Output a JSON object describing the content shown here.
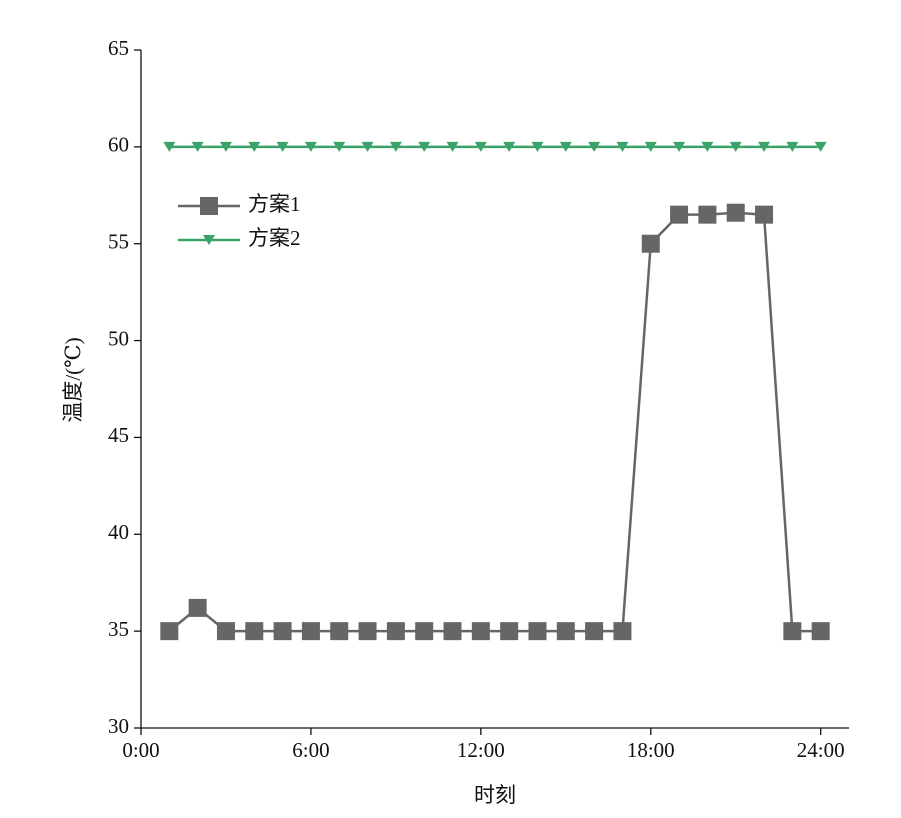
{
  "chart_data": {
    "type": "line",
    "xlabel": "时刻",
    "ylabel": "温度/(℃)",
    "x": [
      1,
      2,
      3,
      4,
      5,
      6,
      7,
      8,
      9,
      10,
      11,
      12,
      13,
      14,
      15,
      16,
      17,
      18,
      19,
      20,
      21,
      22,
      23,
      24
    ],
    "series": [
      {
        "name": "方案1",
        "color": "#666666",
        "marker": "square",
        "values": [
          35,
          36.2,
          35,
          35,
          35,
          35,
          35,
          35,
          35,
          35,
          35,
          35,
          35,
          35,
          35,
          35,
          35,
          55,
          56.5,
          56.5,
          56.6,
          56.5,
          35,
          35
        ]
      },
      {
        "name": "方案2",
        "color": "#3aa36a",
        "marker": "triangle-down",
        "values": [
          60,
          60,
          60,
          60,
          60,
          60,
          60,
          60,
          60,
          60,
          60,
          60,
          60,
          60,
          60,
          60,
          60,
          60,
          60,
          60,
          60,
          60,
          60,
          60
        ]
      }
    ],
    "xlim": [
      0,
      25
    ],
    "xticks": [
      {
        "value": 0,
        "label": "0:00"
      },
      {
        "value": 6,
        "label": "6:00"
      },
      {
        "value": 12,
        "label": "12:00"
      },
      {
        "value": 18,
        "label": "18:00"
      },
      {
        "value": 24,
        "label": "24:00"
      }
    ],
    "ylim": [
      30,
      65
    ],
    "yticks": [
      30,
      35,
      40,
      45,
      50,
      55,
      60,
      65
    ],
    "grid": false,
    "legend": "upper left"
  }
}
